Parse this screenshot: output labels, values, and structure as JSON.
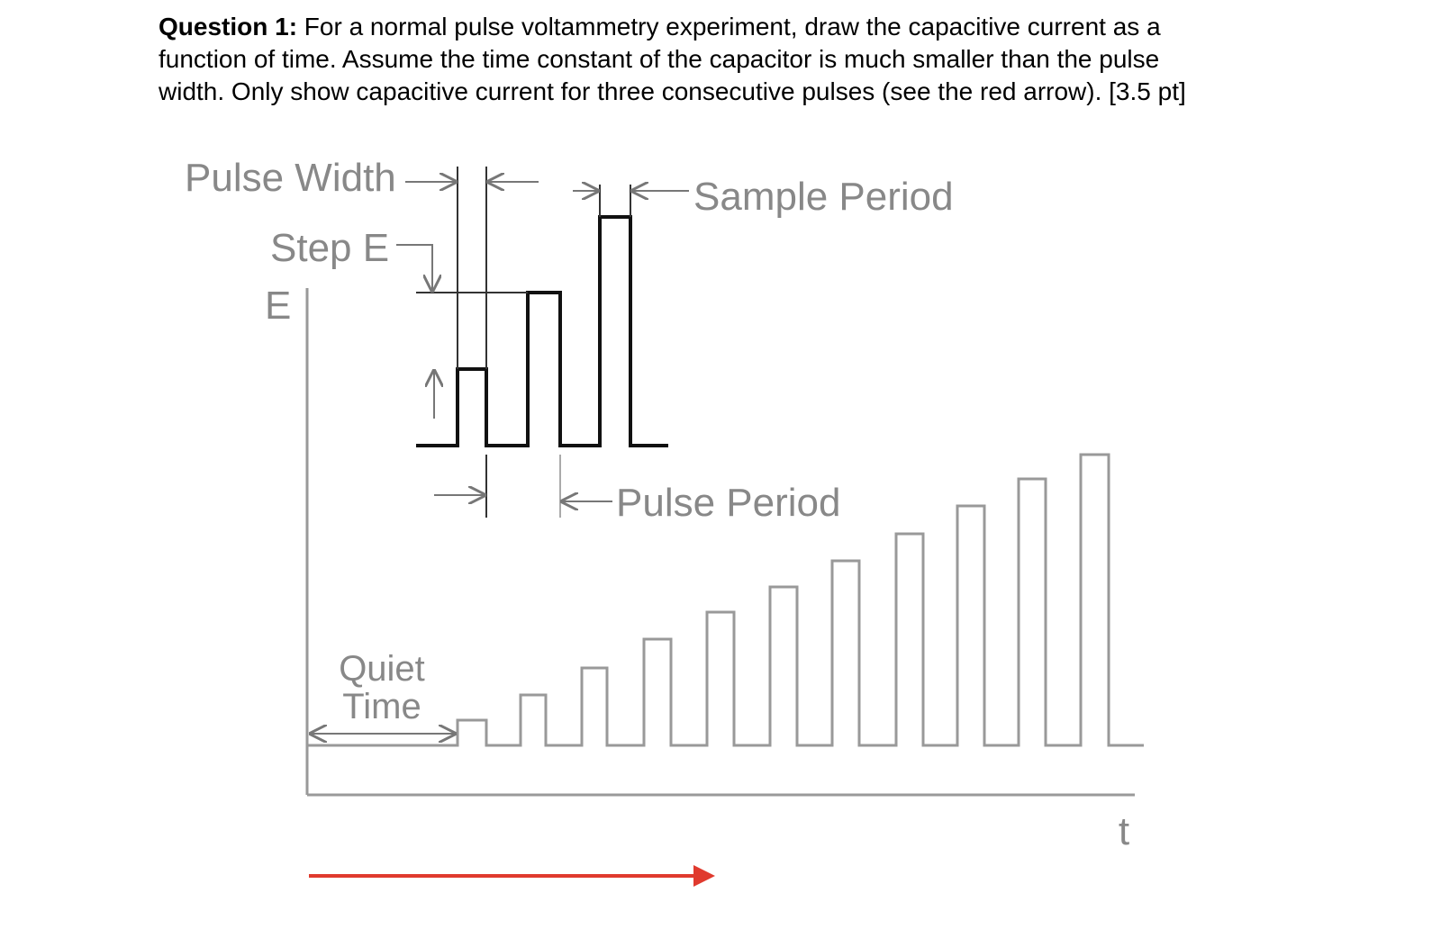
{
  "question": {
    "label": "Question 1:",
    "text": "For a normal pulse voltammetry experiment, draw the capacitive current as a function of time. Assume the time constant of the capacitor is much smaller than the pulse width. Only show capacitive current for three consecutive pulses (see the red arrow). [3.5 pt]"
  },
  "diagram": {
    "pulse_width": "Pulse Width",
    "step_e": "Step E",
    "e_axis": "E",
    "sample_period": "Sample Period",
    "pulse_period": "Pulse Period",
    "quiet_time": [
      "Quiet",
      "Time"
    ],
    "t_axis": "t"
  }
}
